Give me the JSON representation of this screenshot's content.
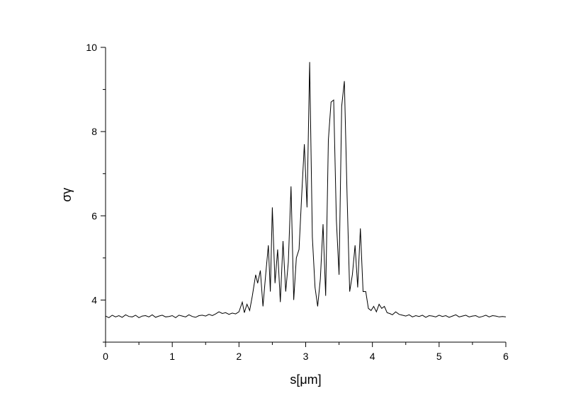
{
  "chart_data": {
    "type": "line",
    "xlabel": "s[μm]",
    "ylabel": "σγ",
    "xlim": [
      0,
      6
    ],
    "ylim": [
      3,
      10
    ],
    "x_ticks": [
      "0",
      "1",
      "2",
      "3",
      "4",
      "5",
      "6"
    ],
    "y_ticks": [
      "4",
      "6",
      "8",
      "10"
    ],
    "grid": false,
    "series": [
      {
        "x": [
          0,
          0.05,
          0.1,
          0.15,
          0.2,
          0.25,
          0.3,
          0.35,
          0.4,
          0.45,
          0.5,
          0.55,
          0.6,
          0.65,
          0.7,
          0.75,
          0.8,
          0.85,
          0.9,
          0.95,
          1.0,
          1.05,
          1.1,
          1.15,
          1.2,
          1.25,
          1.3,
          1.35,
          1.4,
          1.45,
          1.5,
          1.55,
          1.6,
          1.65,
          1.7,
          1.75,
          1.8,
          1.85,
          1.9,
          1.95,
          2.0,
          2.05,
          2.08,
          2.12,
          2.16,
          2.2,
          2.25,
          2.28,
          2.32,
          2.36,
          2.4,
          2.44,
          2.47,
          2.5,
          2.54,
          2.58,
          2.62,
          2.66,
          2.7,
          2.74,
          2.78,
          2.82,
          2.86,
          2.9,
          2.94,
          2.98,
          3.02,
          3.06,
          3.1,
          3.14,
          3.18,
          3.22,
          3.26,
          3.3,
          3.34,
          3.38,
          3.42,
          3.46,
          3.5,
          3.54,
          3.58,
          3.62,
          3.66,
          3.7,
          3.74,
          3.78,
          3.82,
          3.86,
          3.9,
          3.94,
          3.98,
          4.02,
          4.06,
          4.1,
          4.14,
          4.18,
          4.22,
          4.26,
          4.3,
          4.35,
          4.4,
          4.45,
          4.5,
          4.55,
          4.6,
          4.65,
          4.7,
          4.75,
          4.8,
          4.85,
          4.9,
          4.95,
          5.0,
          5.05,
          5.1,
          5.15,
          5.2,
          5.25,
          5.3,
          5.35,
          5.4,
          5.45,
          5.5,
          5.55,
          5.6,
          5.65,
          5.7,
          5.75,
          5.8,
          5.85,
          5.9,
          5.95,
          6.0
        ],
        "y": [
          3.62,
          3.58,
          3.64,
          3.6,
          3.63,
          3.59,
          3.65,
          3.61,
          3.6,
          3.64,
          3.58,
          3.62,
          3.63,
          3.6,
          3.65,
          3.59,
          3.62,
          3.64,
          3.6,
          3.61,
          3.63,
          3.58,
          3.64,
          3.62,
          3.6,
          3.65,
          3.61,
          3.59,
          3.63,
          3.64,
          3.62,
          3.66,
          3.63,
          3.67,
          3.72,
          3.68,
          3.7,
          3.66,
          3.69,
          3.67,
          3.72,
          3.95,
          3.7,
          3.9,
          3.75,
          4.1,
          4.6,
          4.4,
          4.7,
          3.85,
          4.6,
          5.3,
          4.2,
          6.2,
          4.4,
          5.2,
          3.95,
          5.4,
          4.2,
          4.9,
          6.7,
          4.0,
          5.0,
          5.2,
          6.5,
          7.7,
          6.2,
          9.65,
          5.5,
          4.3,
          3.85,
          4.5,
          5.8,
          4.1,
          7.8,
          8.7,
          8.75,
          5.9,
          4.6,
          8.6,
          9.2,
          6.5,
          4.2,
          4.6,
          5.3,
          4.3,
          5.7,
          4.2,
          4.2,
          3.8,
          3.75,
          3.85,
          3.72,
          3.9,
          3.8,
          3.85,
          3.7,
          3.68,
          3.65,
          3.72,
          3.66,
          3.64,
          3.62,
          3.65,
          3.6,
          3.63,
          3.61,
          3.64,
          3.59,
          3.63,
          3.62,
          3.6,
          3.64,
          3.61,
          3.63,
          3.59,
          3.62,
          3.65,
          3.6,
          3.62,
          3.64,
          3.6,
          3.62,
          3.63,
          3.59,
          3.61,
          3.64,
          3.6,
          3.63,
          3.62,
          3.6,
          3.61,
          3.6
        ]
      }
    ]
  }
}
